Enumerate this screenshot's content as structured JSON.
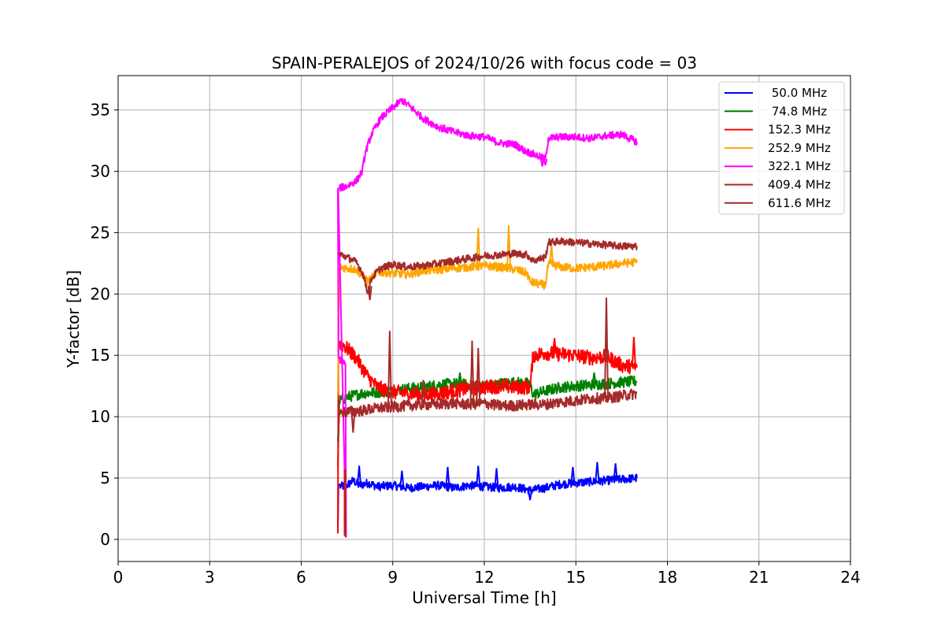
{
  "chart_data": {
    "type": "line",
    "title": "SPAIN-PERALEJOS of 2024/10/26 with focus code = 03",
    "xlabel": "Universal Time [h]",
    "ylabel": "Y-factor [dB]",
    "xlim": [
      0,
      24
    ],
    "ylim": [
      -1.8,
      37.8
    ],
    "xticks": [
      0,
      3,
      6,
      9,
      12,
      15,
      18,
      21,
      24
    ],
    "yticks": [
      0,
      5,
      10,
      15,
      20,
      25,
      30,
      35
    ],
    "grid": true,
    "legend_position": "top-right",
    "series": [
      {
        "name": " 50.0 MHz",
        "color": "#0000ff",
        "points": [
          [
            7.2,
            0.7
          ],
          [
            7.22,
            4.5
          ],
          [
            7.3,
            4.3
          ],
          [
            7.5,
            4.4
          ],
          [
            7.7,
            4.8
          ],
          [
            7.9,
            4.4
          ],
          [
            8.2,
            4.6
          ],
          [
            8.5,
            4.3
          ],
          [
            9.0,
            4.4
          ],
          [
            9.5,
            4.2
          ],
          [
            10.0,
            4.3
          ],
          [
            10.5,
            4.4
          ],
          [
            11.0,
            4.2
          ],
          [
            11.5,
            4.4
          ],
          [
            12.0,
            4.3
          ],
          [
            12.5,
            4.2
          ],
          [
            13.0,
            4.3
          ],
          [
            13.5,
            4.0
          ],
          [
            14.0,
            4.2
          ],
          [
            14.5,
            4.5
          ],
          [
            15.0,
            4.6
          ],
          [
            15.5,
            4.7
          ],
          [
            16.0,
            4.8
          ],
          [
            16.5,
            4.9
          ],
          [
            17.0,
            5.0
          ]
        ],
        "noise": 0.35,
        "spikes": [
          [
            7.9,
            6.0
          ],
          [
            9.3,
            5.6
          ],
          [
            10.8,
            5.9
          ],
          [
            11.8,
            6.0
          ],
          [
            12.4,
            5.8
          ],
          [
            14.9,
            5.9
          ],
          [
            15.7,
            6.3
          ],
          [
            16.3,
            6.2
          ]
        ],
        "dips": [
          [
            13.5,
            3.2
          ]
        ]
      },
      {
        "name": " 74.8 MHz",
        "color": "#008000",
        "points": [
          [
            7.2,
            6.0
          ],
          [
            7.25,
            11.3
          ],
          [
            7.5,
            11.6
          ],
          [
            8.0,
            11.9
          ],
          [
            8.5,
            12.0
          ],
          [
            9.0,
            12.1
          ],
          [
            9.5,
            12.3
          ],
          [
            10.0,
            12.4
          ],
          [
            10.5,
            12.6
          ],
          [
            11.0,
            12.7
          ],
          [
            11.5,
            12.6
          ],
          [
            12.0,
            12.5
          ],
          [
            12.5,
            12.7
          ],
          [
            13.0,
            12.8
          ],
          [
            13.5,
            12.7
          ],
          [
            13.6,
            11.8
          ],
          [
            14.0,
            12.1
          ],
          [
            14.5,
            12.4
          ],
          [
            15.0,
            12.5
          ],
          [
            15.5,
            12.6
          ],
          [
            16.0,
            12.7
          ],
          [
            16.5,
            12.8
          ],
          [
            17.0,
            12.9
          ]
        ],
        "noise": 0.45,
        "spikes": [
          [
            11.2,
            13.6
          ],
          [
            15.6,
            13.6
          ]
        ],
        "dips": []
      },
      {
        "name": " 152.3 MHz",
        "color": "#ff0000",
        "points": [
          [
            7.2,
            0.5
          ],
          [
            7.22,
            16.0
          ],
          [
            7.4,
            15.8
          ],
          [
            7.6,
            15.3
          ],
          [
            7.8,
            14.8
          ],
          [
            8.0,
            14.0
          ],
          [
            8.2,
            13.2
          ],
          [
            8.5,
            12.4
          ],
          [
            8.8,
            12.1
          ],
          [
            9.0,
            12.0
          ],
          [
            9.5,
            11.9
          ],
          [
            10.0,
            11.8
          ],
          [
            10.5,
            11.9
          ],
          [
            11.0,
            12.1
          ],
          [
            11.5,
            12.3
          ],
          [
            12.0,
            12.4
          ],
          [
            12.5,
            12.5
          ],
          [
            13.0,
            12.4
          ],
          [
            13.5,
            12.4
          ],
          [
            13.6,
            15.0
          ],
          [
            14.0,
            15.2
          ],
          [
            14.5,
            15.1
          ],
          [
            15.0,
            15.0
          ],
          [
            15.5,
            14.8
          ],
          [
            16.0,
            14.9
          ],
          [
            16.5,
            14.2
          ],
          [
            17.0,
            14.0
          ]
        ],
        "noise": 0.6,
        "spikes": [
          [
            14.3,
            16.4
          ],
          [
            16.0,
            16.0
          ],
          [
            16.9,
            16.5
          ]
        ],
        "dips": []
      },
      {
        "name": " 252.9 MHz",
        "color": "#ffa500",
        "points": [
          [
            7.2,
            11.8
          ],
          [
            7.25,
            22.2
          ],
          [
            7.5,
            22.1
          ],
          [
            7.8,
            22.0
          ],
          [
            8.0,
            21.5
          ],
          [
            8.2,
            21.0
          ],
          [
            8.5,
            21.8
          ],
          [
            9.0,
            21.7
          ],
          [
            9.5,
            21.6
          ],
          [
            10.0,
            21.9
          ],
          [
            10.5,
            22.0
          ],
          [
            11.0,
            22.1
          ],
          [
            11.5,
            22.2
          ],
          [
            12.0,
            22.3
          ],
          [
            12.5,
            22.2
          ],
          [
            13.0,
            22.0
          ],
          [
            13.4,
            21.7
          ],
          [
            13.5,
            21.0
          ],
          [
            13.8,
            20.8
          ],
          [
            14.0,
            20.7
          ],
          [
            14.1,
            22.5
          ],
          [
            14.5,
            22.2
          ],
          [
            15.0,
            22.1
          ],
          [
            15.5,
            22.2
          ],
          [
            16.0,
            22.3
          ],
          [
            16.5,
            22.5
          ],
          [
            17.0,
            22.6
          ]
        ],
        "noise": 0.35,
        "spikes": [
          [
            11.8,
            25.4
          ],
          [
            12.8,
            25.6
          ],
          [
            14.2,
            24.0
          ]
        ],
        "dips": []
      },
      {
        "name": " 322.1 MHz",
        "color": "#ff00ff",
        "points": [
          [
            7.2,
            28.6
          ],
          [
            7.22,
            14.8
          ],
          [
            7.45,
            14.3
          ],
          [
            7.47,
            0.2
          ],
          [
            7.21,
            28.6
          ],
          [
            7.5,
            28.8
          ],
          [
            7.8,
            29.2
          ],
          [
            8.0,
            30.0
          ],
          [
            8.1,
            31.5
          ],
          [
            8.3,
            33.0
          ],
          [
            8.6,
            34.3
          ],
          [
            9.0,
            35.2
          ],
          [
            9.3,
            35.8
          ],
          [
            9.6,
            35.2
          ],
          [
            10.0,
            34.3
          ],
          [
            10.5,
            33.6
          ],
          [
            11.0,
            33.2
          ],
          [
            11.5,
            32.9
          ],
          [
            12.0,
            32.8
          ],
          [
            12.5,
            32.3
          ],
          [
            13.0,
            32.2
          ],
          [
            13.3,
            31.7
          ],
          [
            13.5,
            31.5
          ],
          [
            13.8,
            31.2
          ],
          [
            14.0,
            31.0
          ],
          [
            14.1,
            32.7
          ],
          [
            14.5,
            32.8
          ],
          [
            15.0,
            32.8
          ],
          [
            15.5,
            32.7
          ],
          [
            16.0,
            32.9
          ],
          [
            16.5,
            33.0
          ],
          [
            17.0,
            32.4
          ]
        ],
        "noise": 0.3,
        "spikes": [],
        "dips": [
          [
            13.9,
            30.4
          ],
          [
            14.0,
            30.5
          ]
        ]
      },
      {
        "name": " 409.4 MHz",
        "color": "#a52a2a",
        "points": [
          [
            7.2,
            8.0
          ],
          [
            7.25,
            10.3
          ],
          [
            7.5,
            10.4
          ],
          [
            8.0,
            10.5
          ],
          [
            8.5,
            10.7
          ],
          [
            9.0,
            10.8
          ],
          [
            9.5,
            10.9
          ],
          [
            10.0,
            11.0
          ],
          [
            10.5,
            11.0
          ],
          [
            11.0,
            11.1
          ],
          [
            11.5,
            11.0
          ],
          [
            12.0,
            11.1
          ],
          [
            12.5,
            10.9
          ],
          [
            13.0,
            10.9
          ],
          [
            13.5,
            11.0
          ],
          [
            14.0,
            11.0
          ],
          [
            14.5,
            11.2
          ],
          [
            15.0,
            11.3
          ],
          [
            15.5,
            11.5
          ],
          [
            16.0,
            11.5
          ],
          [
            16.5,
            11.7
          ],
          [
            17.0,
            11.9
          ]
        ],
        "noise": 0.45,
        "spikes": [
          [
            8.9,
            17.0
          ],
          [
            10.0,
            13.0
          ],
          [
            11.6,
            16.2
          ],
          [
            11.8,
            15.6
          ],
          [
            16.0,
            19.7
          ]
        ],
        "dips": [
          [
            7.7,
            8.7
          ]
        ]
      },
      {
        "name": " 611.6 MHz",
        "color": "#a52a2a",
        "points": [
          [
            7.2,
            23.3
          ],
          [
            7.5,
            23.0
          ],
          [
            7.8,
            22.6
          ],
          [
            8.0,
            21.8
          ],
          [
            8.2,
            20.0
          ],
          [
            8.3,
            21.3
          ],
          [
            8.6,
            22.1
          ],
          [
            9.0,
            22.4
          ],
          [
            9.5,
            22.2
          ],
          [
            10.0,
            22.3
          ],
          [
            10.5,
            22.5
          ],
          [
            11.0,
            22.7
          ],
          [
            11.5,
            22.9
          ],
          [
            12.0,
            23.1
          ],
          [
            12.5,
            23.2
          ],
          [
            13.0,
            23.3
          ],
          [
            13.4,
            23.2
          ],
          [
            13.6,
            22.7
          ],
          [
            14.0,
            23.0
          ],
          [
            14.1,
            24.2
          ],
          [
            14.5,
            24.3
          ],
          [
            15.0,
            24.2
          ],
          [
            15.5,
            24.1
          ],
          [
            16.0,
            24.0
          ],
          [
            16.5,
            23.9
          ],
          [
            17.0,
            23.9
          ]
        ],
        "noise": 0.3,
        "spikes": [],
        "dips": [
          [
            8.25,
            19.5
          ]
        ]
      }
    ]
  }
}
